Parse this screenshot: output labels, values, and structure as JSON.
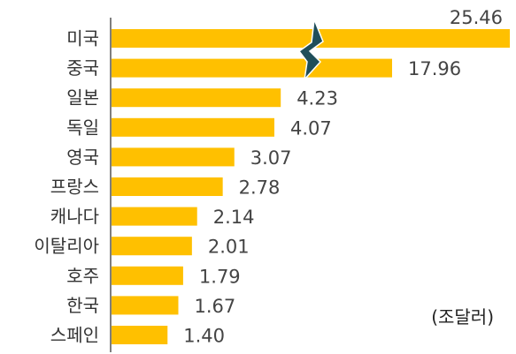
{
  "chart_data": {
    "type": "bar",
    "orientation": "horizontal",
    "categories": [
      "미국",
      "중국",
      "일본",
      "독일",
      "영국",
      "프랑스",
      "캐나다",
      "이탈리아",
      "호주",
      "한국",
      "스페인"
    ],
    "values": [
      25.46,
      17.96,
      4.23,
      4.07,
      3.07,
      2.78,
      2.14,
      2.01,
      1.79,
      1.67,
      1.4
    ],
    "value_labels": [
      "25.46",
      "17.96",
      "4.23",
      "4.07",
      "3.07",
      "2.78",
      "2.14",
      "2.01",
      "1.79",
      "1.67",
      "1.40"
    ],
    "unit": "(조달러)",
    "axis_break": true,
    "bar_color": "#FFC000",
    "break_color": "#1F4E5A",
    "grid": false
  }
}
